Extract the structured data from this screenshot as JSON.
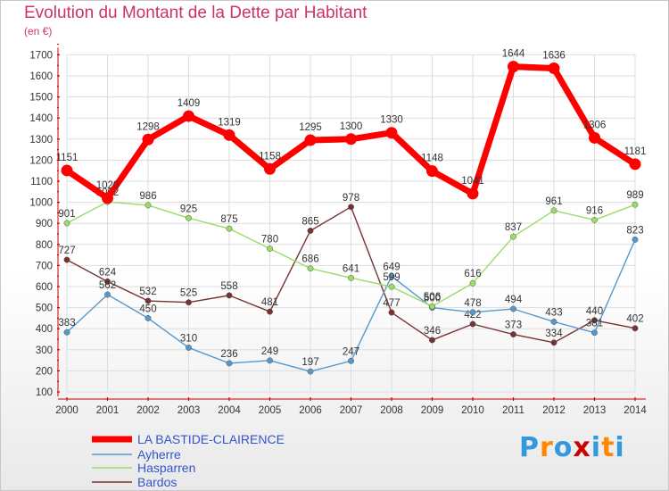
{
  "page": {
    "title": "Evolution du Montant de la Dette par Habitant",
    "unit": "(en €)"
  },
  "brand": {
    "text": "Proxiti",
    "colors": [
      "#3399dd",
      "#ff8800",
      "#3399dd",
      "#cc0000",
      "#3399dd",
      "#ff8800",
      "#3399dd"
    ]
  },
  "chart_data": {
    "type": "line",
    "title": "Evolution du Montant de la Dette par Habitant",
    "ylabel": "(en €)",
    "xlabel": "",
    "x": [
      "2000",
      "2001",
      "2002",
      "2003",
      "2004",
      "2005",
      "2006",
      "2007",
      "2008",
      "2009",
      "2010",
      "2011",
      "2012",
      "2013",
      "2014"
    ],
    "ylim": [
      100,
      1700
    ],
    "yticks": [
      100,
      200,
      300,
      400,
      500,
      600,
      700,
      800,
      900,
      1000,
      1100,
      1200,
      1300,
      1400,
      1500,
      1600,
      1700
    ],
    "grid": true,
    "legend_position": "bottom-left",
    "series": [
      {
        "name": "LA BASTIDE-CLAIRENCE",
        "color": "#ff0000",
        "values": [
          1151,
          1020,
          1298,
          1409,
          1319,
          1158,
          1295,
          1300,
          1330,
          1148,
          1041,
          1644,
          1636,
          1306,
          1181
        ]
      },
      {
        "name": "Ayherre",
        "color": "#5599cc",
        "values": [
          383,
          562,
          450,
          310,
          236,
          249,
          197,
          247,
          649,
          500,
          478,
          494,
          433,
          381,
          823
        ]
      },
      {
        "name": "Hasparren",
        "color": "#99dd66",
        "values": [
          901,
          1002,
          986,
          925,
          875,
          780,
          686,
          641,
          599,
          506,
          616,
          837,
          961,
          916,
          989
        ]
      },
      {
        "name": "Bardos",
        "color": "#773333",
        "values": [
          727,
          624,
          532,
          525,
          558,
          481,
          865,
          978,
          477,
          346,
          422,
          373,
          334,
          440,
          402
        ]
      }
    ]
  }
}
